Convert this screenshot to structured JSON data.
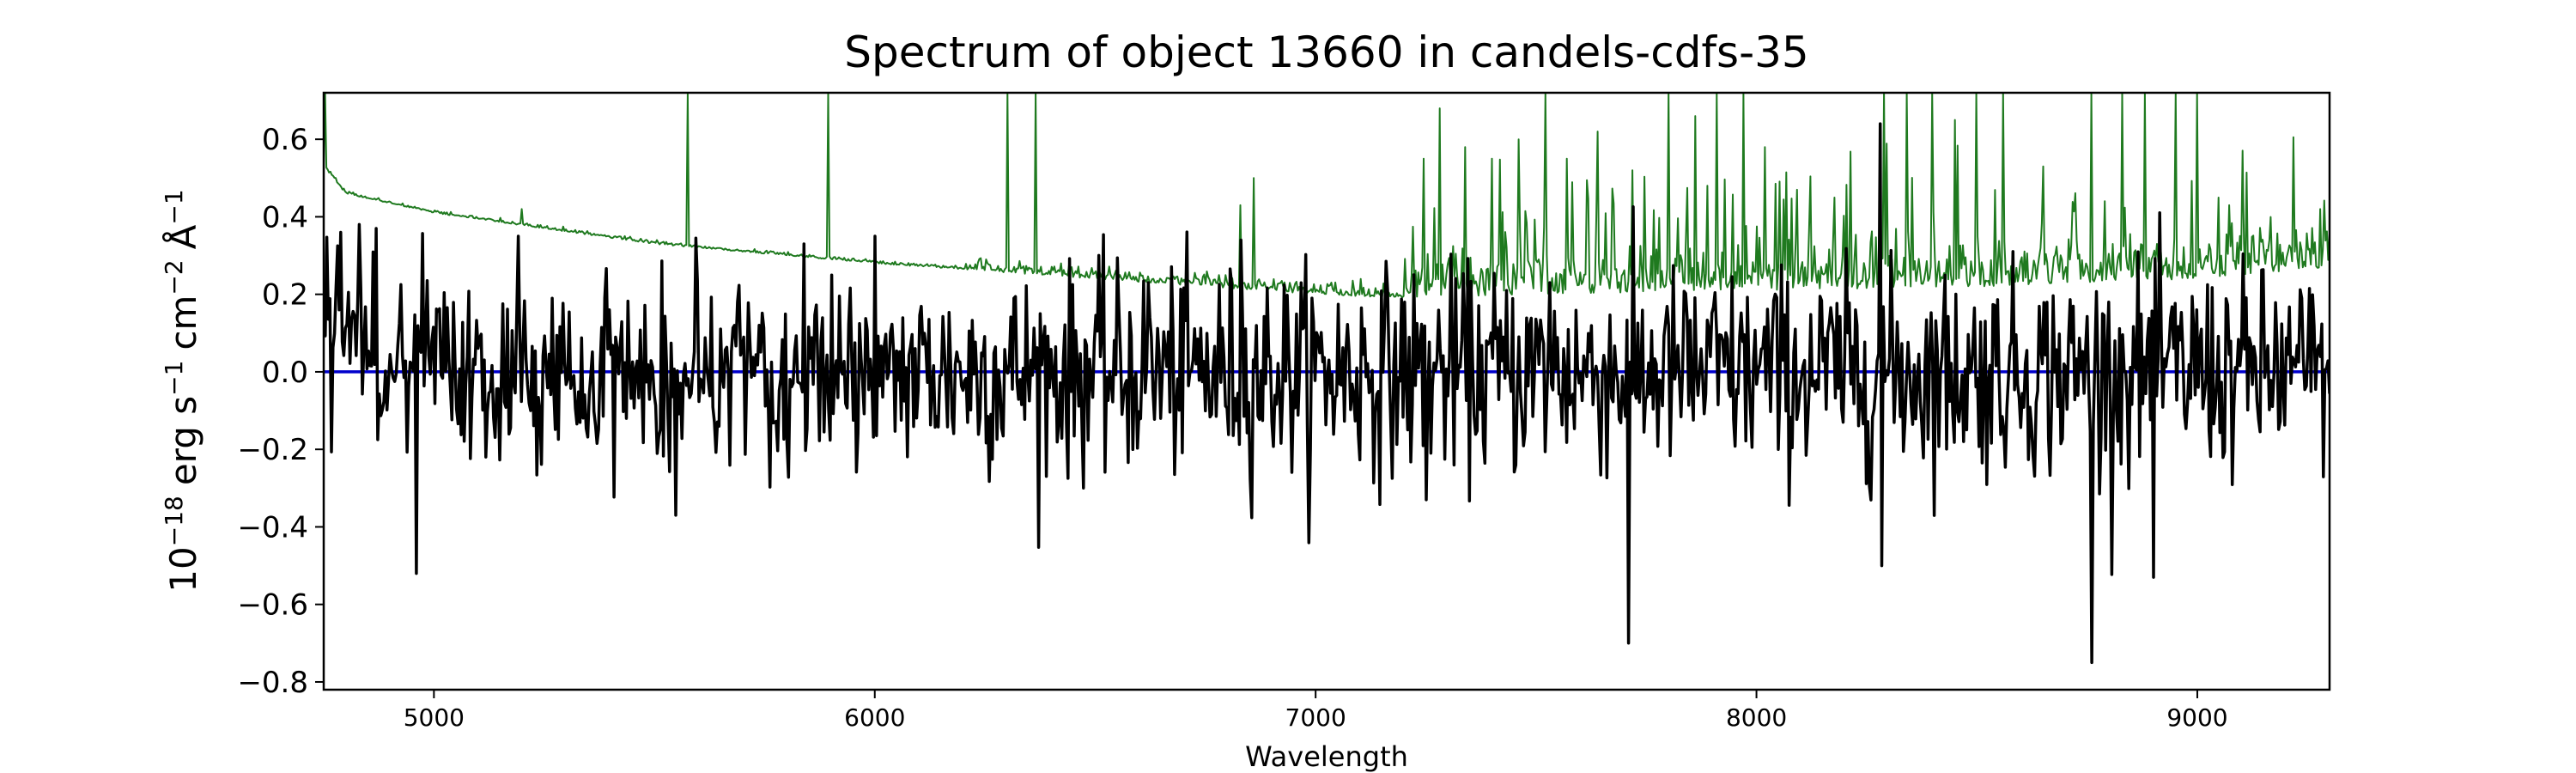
{
  "chart_data": {
    "type": "line",
    "title": "Spectrum of object 13660 in candels-cdfs-35",
    "xlabel": "Wavelength",
    "ylabel_parts": {
      "base": "10",
      "exp_flux": "−18",
      "unit_erg": "erg s",
      "exp_s": "−1",
      "unit_cm": "cm",
      "exp_cm": "−2",
      "unit_ang": "Å",
      "exp_ang": "−1"
    },
    "xlim": [
      4750,
      9300
    ],
    "ylim": [
      -0.82,
      0.72
    ],
    "xticks": [
      5000,
      6000,
      7000,
      8000,
      9000
    ],
    "xtick_labels": [
      "5000",
      "6000",
      "7000",
      "8000",
      "9000"
    ],
    "yticks": [
      0.6,
      0.4,
      0.2,
      0.0,
      -0.2,
      -0.4,
      -0.6,
      -0.8
    ],
    "ytick_labels": [
      "0.6",
      "0.4",
      "0.2",
      "0.0",
      "−0.2",
      "−0.4",
      "−0.6",
      "−0.8"
    ],
    "grid": false,
    "legend": "none",
    "series": [
      {
        "role": "flux",
        "color": "#000000",
        "sampling": {
          "x_start": 4750,
          "x_end": 9300,
          "n_points": 1300,
          "noise_sigma": 0.13
        },
        "peaks": [
          [
            4790,
            0.36
          ],
          [
            4830,
            0.38
          ],
          [
            4870,
            0.37
          ],
          [
            4960,
            -0.52
          ],
          [
            5190,
            0.35
          ],
          [
            5550,
            -0.37
          ],
          [
            5840,
            0.33
          ],
          [
            6000,
            0.35
          ],
          [
            6620,
            0.23
          ],
          [
            6830,
            0.34
          ],
          [
            7250,
            -0.33
          ],
          [
            7530,
            0.23
          ],
          [
            7710,
            -0.7
          ],
          [
            8280,
            0.64
          ],
          [
            8280,
            -0.5
          ],
          [
            8760,
            -0.75
          ],
          [
            8800,
            0.18
          ],
          [
            8900,
            -0.53
          ],
          [
            9000,
            0.16
          ]
        ]
      },
      {
        "role": "error",
        "color": "#1f7a1f",
        "baseline": [
          [
            4750,
            0.53
          ],
          [
            4800,
            0.46
          ],
          [
            5000,
            0.41
          ],
          [
            5500,
            0.33
          ],
          [
            6000,
            0.28
          ],
          [
            6500,
            0.24
          ],
          [
            7000,
            0.2
          ],
          [
            7200,
            0.19
          ],
          [
            7500,
            0.2
          ],
          [
            8000,
            0.21
          ],
          [
            8500,
            0.22
          ],
          [
            9000,
            0.24
          ],
          [
            9300,
            0.27
          ]
        ],
        "spikes": [
          [
            4752,
            0.72
          ],
          [
            5200,
            0.42
          ],
          [
            5577,
            0.72
          ],
          [
            5893,
            0.72
          ],
          [
            6300,
            0.72
          ],
          [
            6364,
            0.72
          ],
          [
            6830,
            0.43
          ],
          [
            6860,
            0.5
          ],
          [
            7245,
            0.55
          ],
          [
            7280,
            0.68
          ],
          [
            7340,
            0.58
          ],
          [
            7400,
            0.55
          ],
          [
            7460,
            0.6
          ],
          [
            7520,
            0.72
          ],
          [
            7570,
            0.55
          ],
          [
            7640,
            0.62
          ],
          [
            7720,
            0.52
          ],
          [
            7800,
            0.72
          ],
          [
            7860,
            0.66
          ],
          [
            7910,
            0.72
          ],
          [
            7970,
            0.72
          ],
          [
            8020,
            0.58
          ],
          [
            8290,
            0.72
          ],
          [
            8340,
            0.72
          ],
          [
            8400,
            0.72
          ],
          [
            8450,
            0.65
          ],
          [
            8500,
            0.72
          ],
          [
            8560,
            0.72
          ],
          [
            8650,
            0.53
          ],
          [
            8760,
            0.72
          ],
          [
            8830,
            0.72
          ],
          [
            8880,
            0.72
          ],
          [
            8950,
            0.72
          ],
          [
            9000,
            0.72
          ],
          [
            9280,
            0.42
          ]
        ]
      },
      {
        "role": "zero",
        "color": "#0000cc",
        "constant": 0.0
      }
    ]
  }
}
